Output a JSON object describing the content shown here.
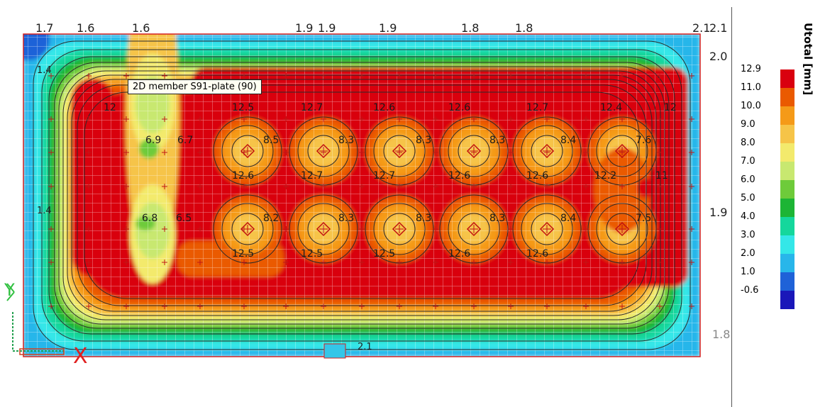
{
  "tooltip": {
    "text": "2D member S91-plate (90)"
  },
  "legend": {
    "title": "Utotal [mm]",
    "levels": [
      "12.9",
      "11.0",
      "10.0",
      "9.0",
      "8.0",
      "7.0",
      "6.0",
      "5.0",
      "4.0",
      "3.0",
      "2.0",
      "1.0",
      "-0.6"
    ],
    "colors": [
      "#d9000f",
      "#ea5a00",
      "#f59a18",
      "#f6c448",
      "#f3ea6c",
      "#c8e870",
      "#6ecb3a",
      "#1db535",
      "#15d79c",
      "#34e7e8",
      "#28b6ea",
      "#1f62d8",
      "#1a17b9"
    ]
  },
  "axes": {
    "x_label": "X",
    "y_label": "Y"
  },
  "edge_labels_top": [
    "1.7",
    "1.6",
    "1.6",
    "1.9",
    "1.9",
    "1.9",
    "1.8",
    "1.8",
    "2.1",
    "2.1"
  ],
  "edge_labels_right": [
    "2.0",
    "1.9",
    "1.8"
  ],
  "edge_labels_left": [
    "1.4",
    "1.4"
  ],
  "edge_labels_bottom": [
    "2.1"
  ],
  "contour_values": [
    "12.5",
    "12.7",
    "12.6",
    "12.6",
    "12.7",
    "12.4",
    "12",
    "12",
    "6.9",
    "6.7",
    "6.8",
    "6.5",
    "8.5",
    "8.3",
    "8.3",
    "8.3",
    "8.4",
    "7.6",
    "8.2",
    "8.3",
    "8.3",
    "8.3",
    "8.4",
    "7.5",
    "12.6",
    "12.7",
    "12.7",
    "12.6",
    "12.6",
    "12.2",
    "11",
    "12.5",
    "12.5",
    "12.5",
    "12.6",
    "12.6"
  ]
}
